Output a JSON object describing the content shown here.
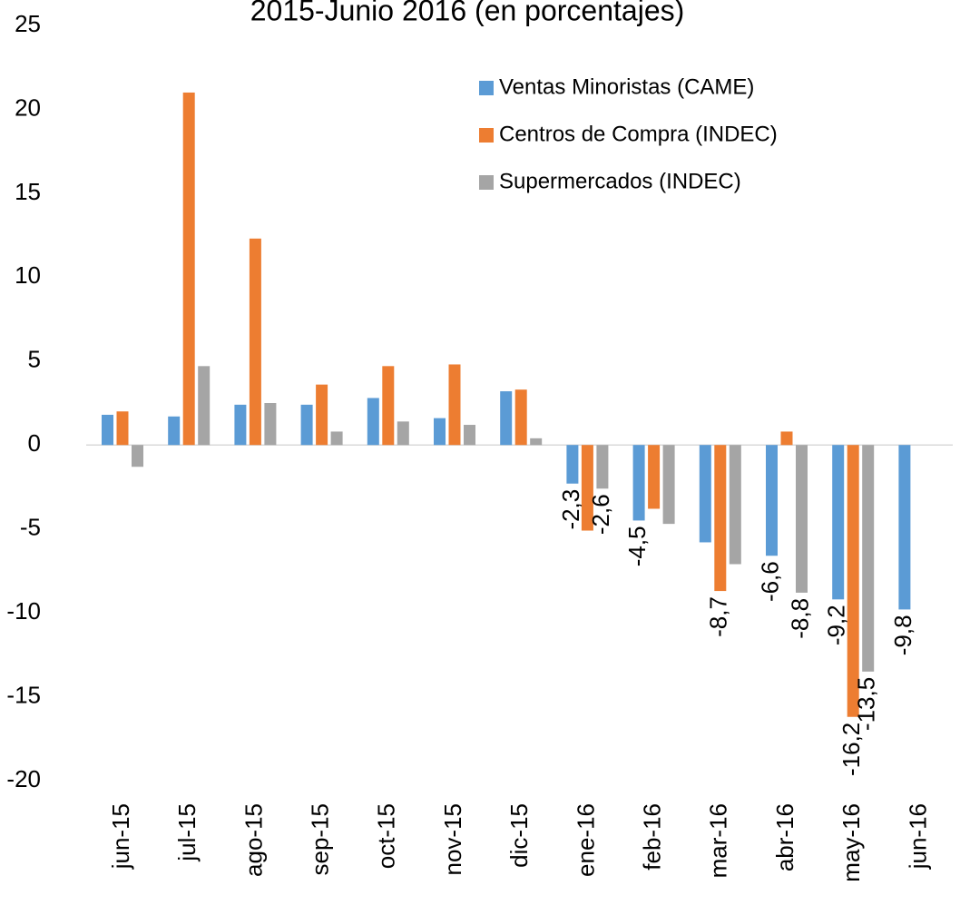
{
  "chart_data": {
    "type": "bar",
    "title": "2015-Junio 2016 (en porcentajes)",
    "categories": [
      "jun-15",
      "jul-15",
      "ago-15",
      "sep-15",
      "oct-15",
      "nov-15",
      "dic-15",
      "ene-16",
      "feb-16",
      "mar-16",
      "abr-16",
      "may-16",
      "jun-16"
    ],
    "series": [
      {
        "name": "Ventas Minoristas (CAME)",
        "color": "#5b9bd5",
        "values": [
          1.8,
          1.7,
          2.4,
          2.4,
          2.8,
          1.6,
          3.2,
          -2.3,
          -4.5,
          -5.8,
          -6.6,
          -9.2,
          -9.8
        ],
        "value_labels": [
          null,
          null,
          null,
          null,
          null,
          null,
          null,
          "-2,3",
          "-4,5",
          null,
          "-6,6",
          "-9,2",
          "-9,8"
        ]
      },
      {
        "name": "Centros de Compra (INDEC)",
        "color": "#ed7d31",
        "values": [
          2.0,
          21.0,
          12.3,
          3.6,
          4.7,
          4.8,
          3.3,
          -5.1,
          -3.8,
          -8.7,
          0.8,
          -16.2,
          null
        ],
        "value_labels": [
          null,
          null,
          null,
          null,
          null,
          null,
          null,
          null,
          null,
          "-8,7",
          null,
          "-16,2",
          null
        ]
      },
      {
        "name": "Supermercados (INDEC)",
        "color": "#a5a5a5",
        "values": [
          -1.3,
          4.7,
          2.5,
          0.8,
          1.4,
          1.2,
          0.4,
          -2.6,
          -4.7,
          -7.1,
          -8.8,
          -13.5,
          null
        ],
        "value_labels": [
          null,
          null,
          null,
          null,
          null,
          null,
          null,
          "-2,6",
          null,
          null,
          "-8,8",
          "-13,5",
          null
        ]
      }
    ],
    "ylim": [
      -20,
      25
    ],
    "yticks": [
      -20,
      -15,
      -10,
      -5,
      0,
      5,
      10,
      15,
      20,
      25
    ],
    "grid": false,
    "legend": "top-right"
  }
}
